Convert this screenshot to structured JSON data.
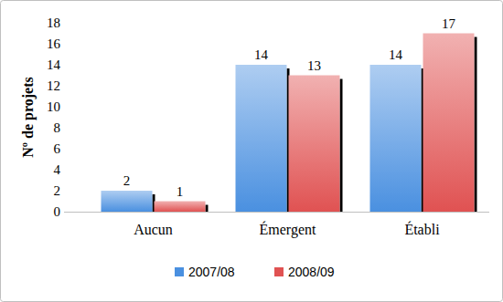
{
  "chart_data": {
    "type": "bar",
    "ylabel": "Nº de projets",
    "categories": [
      "Aucun",
      "Émergent",
      "Établi"
    ],
    "series": [
      {
        "name": "2007/08",
        "color": "#4a90e0",
        "values": [
          2,
          14,
          14
        ]
      },
      {
        "name": "2008/09",
        "color": "#e05252",
        "values": [
          1,
          13,
          17
        ]
      }
    ],
    "ylim": [
      0,
      18
    ],
    "yticks": [
      0,
      2,
      4,
      6,
      8,
      10,
      12,
      14,
      16,
      18
    ],
    "grid": false,
    "legend": "bottom",
    "data_labels": true
  }
}
